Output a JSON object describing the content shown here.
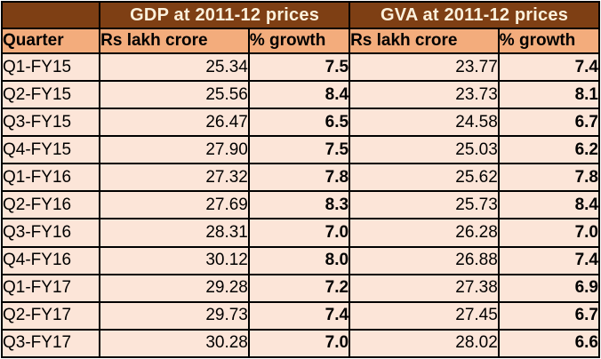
{
  "table": {
    "gdp_title": "GDP at 2011-12 prices",
    "gva_title": "GVA at 2011-12 prices",
    "columns": {
      "quarter": "Quarter",
      "gdp_value": "Rs lakh crore",
      "gdp_growth": "% growth",
      "gva_value": "Rs lakh crore",
      "gva_growth": "% growth"
    },
    "rows": [
      {
        "quarter": "Q1-FY15",
        "gdp_value": "25.34",
        "gdp_growth": "7.5",
        "gva_value": "23.77",
        "gva_growth": "7.4"
      },
      {
        "quarter": "Q2-FY15",
        "gdp_value": "25.56",
        "gdp_growth": "8.4",
        "gva_value": "23.73",
        "gva_growth": "8.1"
      },
      {
        "quarter": "Q3-FY15",
        "gdp_value": "26.47",
        "gdp_growth": "6.5",
        "gva_value": "24.58",
        "gva_growth": "6.7"
      },
      {
        "quarter": "Q4-FY15",
        "gdp_value": "27.90",
        "gdp_growth": "7.5",
        "gva_value": "25.03",
        "gva_growth": "6.2"
      },
      {
        "quarter": "Q1-FY16",
        "gdp_value": "27.32",
        "gdp_growth": "7.8",
        "gva_value": "25.62",
        "gva_growth": "7.8"
      },
      {
        "quarter": "Q2-FY16",
        "gdp_value": "27.69",
        "gdp_growth": "8.3",
        "va_placeholder": "",
        "gva_value": "25.73",
        "gva_growth": "8.4"
      },
      {
        "quarter": "Q3-FY16",
        "gdp_value": "28.31",
        "gdp_growth": "7.0",
        "gva_value": "26.28",
        "gva_growth": "7.0"
      },
      {
        "quarter": "Q4-FY16",
        "gdp_value": "30.12",
        "gdp_growth": "8.0",
        "gva_value": "26.88",
        "gva_growth": "7.4"
      },
      {
        "quarter": "Q1-FY17",
        "gdp_value": "29.28",
        "gdp_growth": "7.2",
        "gva_value": "27.38",
        "gva_growth": "6.9"
      },
      {
        "quarter": "Q2-FY17",
        "gdp_value": "29.73",
        "gdp_growth": "7.4",
        "gva_value": "27.45",
        "gva_growth": "6.7"
      },
      {
        "quarter": "Q3-FY17",
        "gdp_value": "30.28",
        "gdp_growth": "7.0",
        "gva_value": "28.02",
        "gva_growth": "6.6"
      }
    ]
  },
  "colors": {
    "title_bg": "#7E3F14",
    "title_text": "#FCF1DC",
    "header_bg": "#F3AC7C",
    "row_bg": "#FCE5D8",
    "border": "#000000",
    "text": "#000000"
  },
  "chart_data": {
    "type": "table",
    "title": "Quarterly GDP and GVA at 2011-12 prices",
    "column_groups": [
      "GDP at 2011-12 prices",
      "GVA at 2011-12 prices"
    ],
    "columns": [
      "Quarter",
      "GDP Rs lakh crore",
      "GDP % growth",
      "GVA Rs lakh crore",
      "GVA % growth"
    ],
    "rows": [
      [
        "Q1-FY15",
        25.34,
        7.5,
        23.77,
        7.4
      ],
      [
        "Q2-FY15",
        25.56,
        8.4,
        23.73,
        8.1
      ],
      [
        "Q3-FY15",
        26.47,
        6.5,
        24.58,
        6.7
      ],
      [
        "Q4-FY15",
        27.9,
        7.5,
        25.03,
        6.2
      ],
      [
        "Q1-FY16",
        27.32,
        7.8,
        25.62,
        7.8
      ],
      [
        "Q2-FY16",
        27.69,
        8.3,
        25.73,
        8.4
      ],
      [
        "Q3-FY16",
        28.31,
        7.0,
        26.28,
        7.0
      ],
      [
        "Q4-FY16",
        30.12,
        8.0,
        26.88,
        7.4
      ],
      [
        "Q1-FY17",
        29.28,
        7.2,
        27.38,
        6.9
      ],
      [
        "Q2-FY17",
        29.73,
        7.4,
        27.45,
        6.7
      ],
      [
        "Q3-FY17",
        30.28,
        7.0,
        28.02,
        6.6
      ]
    ]
  }
}
